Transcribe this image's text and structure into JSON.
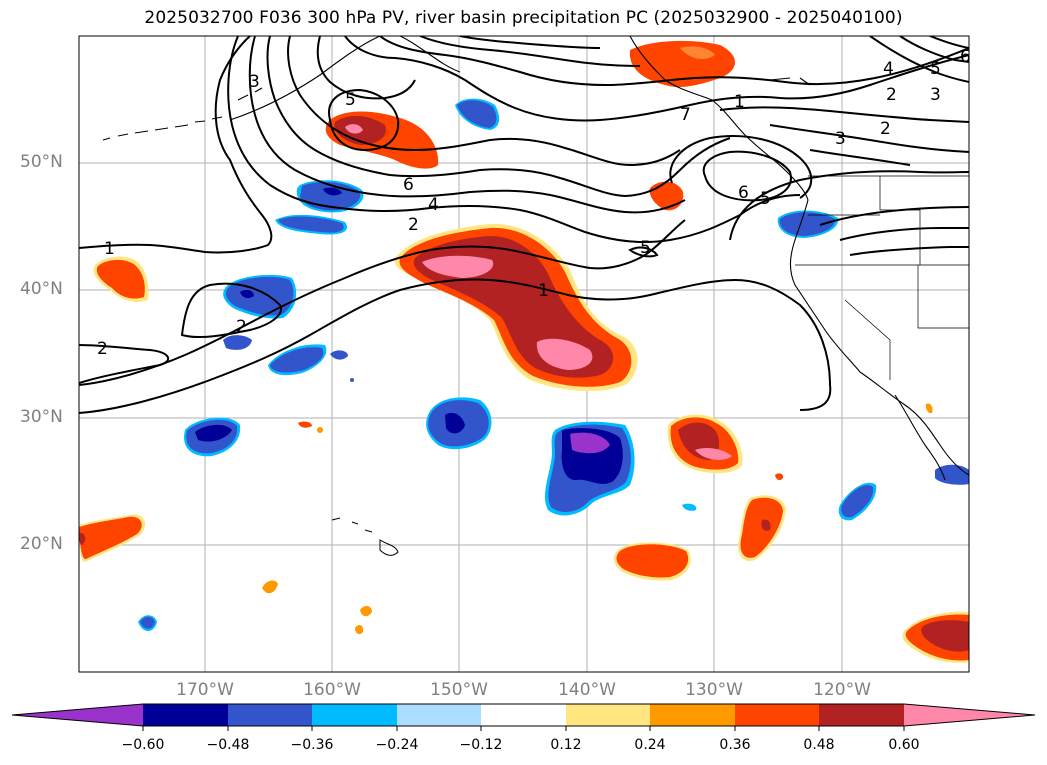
{
  "title": "2025032700 F036 300 hPa PV, river basin precipitation PC (2025032900 - 2025040100)",
  "lat_labels": [
    "50°N",
    "40°N",
    "30°N",
    "20°N"
  ],
  "lon_labels": [
    "170°W",
    "160°W",
    "150°W",
    "140°W",
    "130°W",
    "120°W"
  ],
  "colorbar": {
    "ticks": [
      "−0.60",
      "−0.48",
      "−0.36",
      "−0.24",
      "−0.12",
      "0.12",
      "0.24",
      "0.36",
      "0.48",
      "0.60"
    ],
    "colors": [
      "#9933cc",
      "#000099",
      "#3355cc",
      "#00bbff",
      "#aaddff",
      "#ffffff",
      "#ffe680",
      "#ff9900",
      "#ff4400",
      "#b22222",
      "#ff88aa"
    ]
  },
  "contour_labels": [
    "1",
    "2",
    "3",
    "4",
    "5",
    "6",
    "7"
  ]
}
